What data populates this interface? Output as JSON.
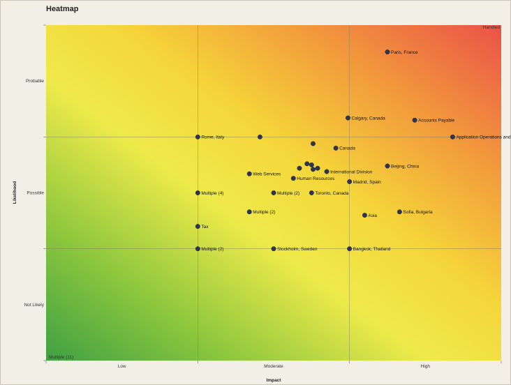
{
  "chart_data": {
    "type": "scatter",
    "title": "Heatmap",
    "xlabel": "Impact",
    "ylabel": "Likelihood",
    "xlim": [
      0,
      3
    ],
    "ylim": [
      0,
      3
    ],
    "grid": true,
    "x_ticks": [
      {
        "at": 0.5,
        "label": "Low"
      },
      {
        "at": 1.5,
        "label": "Moderate"
      },
      {
        "at": 2.5,
        "label": "High"
      }
    ],
    "y_ticks": [
      {
        "at": 0.5,
        "label": "Not Likely"
      },
      {
        "at": 1.5,
        "label": "Possible"
      },
      {
        "at": 2.5,
        "label": "Probable"
      }
    ],
    "corner_labels": {
      "top_right": "Handled",
      "bottom_left": "Multiple (11)"
    },
    "points": [
      {
        "x": 2.25,
        "y": 2.76,
        "label": "Paris, France"
      },
      {
        "x": 1.99,
        "y": 2.17,
        "label": "Calgary, Canada"
      },
      {
        "x": 2.43,
        "y": 2.15,
        "label": "Accounts Payable"
      },
      {
        "x": 2.68,
        "y": 2.0,
        "label": "Application Operations and Support"
      },
      {
        "x": 1.0,
        "y": 2.0,
        "label": "Rome, Italy"
      },
      {
        "x": 1.41,
        "y": 2.0,
        "label": ""
      },
      {
        "x": 1.76,
        "y": 1.94,
        "label": ""
      },
      {
        "x": 1.91,
        "y": 1.9,
        "label": "Canada"
      },
      {
        "x": 2.25,
        "y": 1.74,
        "label": "Beijing, China"
      },
      {
        "x": 1.72,
        "y": 1.76,
        "label": ""
      },
      {
        "x": 1.75,
        "y": 1.75,
        "label": ""
      },
      {
        "x": 1.67,
        "y": 1.72,
        "label": ""
      },
      {
        "x": 1.76,
        "y": 1.71,
        "label": ""
      },
      {
        "x": 1.79,
        "y": 1.72,
        "label": ""
      },
      {
        "x": 1.85,
        "y": 1.69,
        "label": "International Division"
      },
      {
        "x": 1.34,
        "y": 1.67,
        "label": "Web Services"
      },
      {
        "x": 1.63,
        "y": 1.63,
        "label": "Human Resources"
      },
      {
        "x": 2.0,
        "y": 1.6,
        "label": "Madrid, Spain"
      },
      {
        "x": 1.0,
        "y": 1.5,
        "label": "Multiple (4)"
      },
      {
        "x": 1.5,
        "y": 1.5,
        "label": "Multiple (2)"
      },
      {
        "x": 1.75,
        "y": 1.5,
        "label": "Toronto, Canada"
      },
      {
        "x": 1.34,
        "y": 1.33,
        "label": "Multiple (2)"
      },
      {
        "x": 2.33,
        "y": 1.33,
        "label": "Sofia, Bulgaria"
      },
      {
        "x": 2.1,
        "y": 1.3,
        "label": "Asia"
      },
      {
        "x": 1.0,
        "y": 1.2,
        "label": "Tax"
      },
      {
        "x": 1.0,
        "y": 1.0,
        "label": "Multiple (2)"
      },
      {
        "x": 1.5,
        "y": 1.0,
        "label": "Stockholm, Sweden"
      },
      {
        "x": 2.0,
        "y": 1.0,
        "label": "Bangkok, Thailand"
      }
    ]
  }
}
